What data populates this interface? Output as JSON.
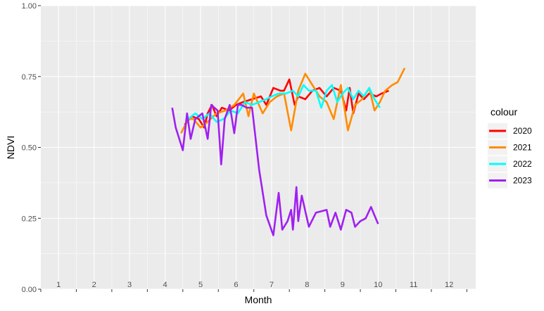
{
  "chart_data": {
    "type": "line",
    "xlabel": "Month",
    "ylabel": "NDVI",
    "xlim": [
      0.5,
      12.75
    ],
    "ylim": [
      0,
      1
    ],
    "grid": true,
    "legend_position": "right",
    "legend_title": "colour",
    "x_ticks": [
      1,
      2,
      3,
      4,
      5,
      6,
      7,
      8,
      9,
      10,
      11,
      12
    ],
    "x_tick_labels": [
      "1",
      "2",
      "3",
      "4",
      "5",
      "6",
      "7",
      "8",
      "9",
      "10",
      "11",
      "12"
    ],
    "y_ticks": [
      0,
      0.25,
      0.5,
      0.75,
      1
    ],
    "y_tick_labels": [
      "0.00",
      "0.25",
      "0.50",
      "0.75",
      "1.00"
    ],
    "series": [
      {
        "name": "2020",
        "color": "#ff0000",
        "x": [
          4.55,
          4.75,
          4.95,
          5.1,
          5.2,
          5.32,
          5.45,
          5.6,
          5.8,
          6.0,
          6.2,
          6.45,
          6.7,
          6.85,
          7.05,
          7.25,
          7.35,
          7.5,
          7.65,
          7.75,
          7.95,
          8.15,
          8.35,
          8.55,
          8.75,
          8.95,
          9.1,
          9.2,
          9.3,
          9.45,
          9.6,
          9.75,
          9.95,
          10.1,
          10.3
        ],
        "y": [
          0.58,
          0.61,
          0.6,
          0.57,
          0.62,
          0.65,
          0.61,
          0.64,
          0.63,
          0.65,
          0.66,
          0.67,
          0.68,
          0.65,
          0.71,
          0.7,
          0.7,
          0.74,
          0.65,
          0.68,
          0.67,
          0.7,
          0.71,
          0.68,
          0.71,
          0.7,
          0.63,
          0.71,
          0.62,
          0.69,
          0.67,
          0.69,
          0.68,
          0.69,
          0.7
        ]
      },
      {
        "name": "2021",
        "color": "#ff8c00",
        "x": [
          4.45,
          4.65,
          4.8,
          5.0,
          5.2,
          5.45,
          5.7,
          5.95,
          6.2,
          6.35,
          6.5,
          6.75,
          6.95,
          7.15,
          7.35,
          7.55,
          7.75,
          7.95,
          8.15,
          8.35,
          8.55,
          8.75,
          8.95,
          9.15,
          9.35,
          9.55,
          9.75,
          9.9,
          10.05,
          10.2,
          10.4,
          10.55,
          10.75
        ],
        "y": [
          0.55,
          0.6,
          0.6,
          0.57,
          0.59,
          0.62,
          0.63,
          0.65,
          0.69,
          0.61,
          0.69,
          0.62,
          0.66,
          0.68,
          0.69,
          0.56,
          0.7,
          0.76,
          0.72,
          0.68,
          0.66,
          0.6,
          0.72,
          0.56,
          0.65,
          0.67,
          0.71,
          0.63,
          0.66,
          0.7,
          0.72,
          0.73,
          0.78
        ]
      },
      {
        "name": "2022",
        "color": "#00ffff",
        "x": [
          4.65,
          4.85,
          5.05,
          5.25,
          5.45,
          5.65,
          5.85,
          6.05,
          6.25,
          6.45,
          6.65,
          6.85,
          7.0,
          7.2,
          7.4,
          7.6,
          7.75,
          7.9,
          8.05,
          8.25,
          8.4,
          8.55,
          8.7,
          8.85,
          9.0,
          9.15,
          9.3,
          9.45,
          9.6,
          9.75,
          9.9,
          10.05
        ],
        "y": [
          0.6,
          0.62,
          0.6,
          0.62,
          0.59,
          0.6,
          0.63,
          0.62,
          0.66,
          0.65,
          0.66,
          0.67,
          0.68,
          0.69,
          0.69,
          0.7,
          0.68,
          0.72,
          0.7,
          0.7,
          0.64,
          0.7,
          0.72,
          0.66,
          0.69,
          0.71,
          0.67,
          0.7,
          0.68,
          0.71,
          0.67,
          0.64
        ]
      },
      {
        "name": "2023",
        "color": "#a020f0",
        "x": [
          4.2,
          4.3,
          4.5,
          4.62,
          4.72,
          4.85,
          5.05,
          5.2,
          5.3,
          5.48,
          5.58,
          5.68,
          5.82,
          5.95,
          6.05,
          6.15,
          6.3,
          6.45,
          6.65,
          6.85,
          7.05,
          7.2,
          7.3,
          7.45,
          7.55,
          7.6,
          7.7,
          7.75,
          7.85,
          8.05,
          8.25,
          8.55,
          8.65,
          8.8,
          8.95,
          9.1,
          9.25,
          9.35,
          9.5,
          9.65,
          9.8,
          9.9,
          10.0
        ],
        "y": [
          0.64,
          0.57,
          0.49,
          0.62,
          0.53,
          0.6,
          0.62,
          0.53,
          0.65,
          0.63,
          0.44,
          0.6,
          0.65,
          0.55,
          0.65,
          0.65,
          0.64,
          0.64,
          0.42,
          0.26,
          0.19,
          0.34,
          0.21,
          0.24,
          0.28,
          0.21,
          0.36,
          0.24,
          0.33,
          0.22,
          0.27,
          0.28,
          0.22,
          0.27,
          0.21,
          0.28,
          0.27,
          0.22,
          0.24,
          0.25,
          0.29,
          0.26,
          0.23
        ]
      }
    ]
  }
}
